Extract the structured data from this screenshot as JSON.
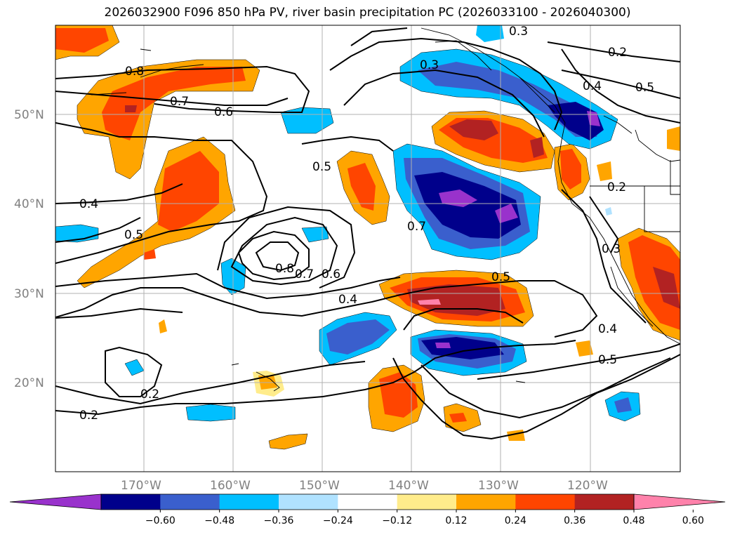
{
  "title": "2026032900 F096 850 hPa PV, river basin precipitation PC (2026033100 - 2026040300)",
  "map": {
    "lat_labels": [
      "50°N",
      "40°N",
      "30°N",
      "20°N"
    ],
    "lon_labels": [
      "170°W",
      "160°W",
      "150°W",
      "140°W",
      "130°W",
      "120°W"
    ],
    "contour_labels": [
      "0.8",
      "0.7",
      "0.6",
      "0.4",
      "0.5",
      "0.5",
      "0.3",
      "0.4",
      "0.2",
      "0.5",
      "0.2",
      "0.7",
      "0.8",
      "0.7",
      "0.6",
      "0.4",
      "0.5",
      "0.3",
      "0.4",
      "0.5",
      "0.2",
      "0.2",
      "0.3"
    ]
  },
  "colorbar": {
    "ticks": [
      "−0.60",
      "−0.48",
      "−0.36",
      "−0.24",
      "−0.12",
      "0.12",
      "0.24",
      "0.36",
      "0.48",
      "0.60"
    ],
    "colors": [
      "#9932CC",
      "#00008B",
      "#3A5FCD",
      "#00BFFF",
      "#B0E2FF",
      "#FFFFFF",
      "#FFEC8B",
      "#FFA500",
      "#FF4500",
      "#B22222",
      "#FF82AB"
    ]
  }
}
